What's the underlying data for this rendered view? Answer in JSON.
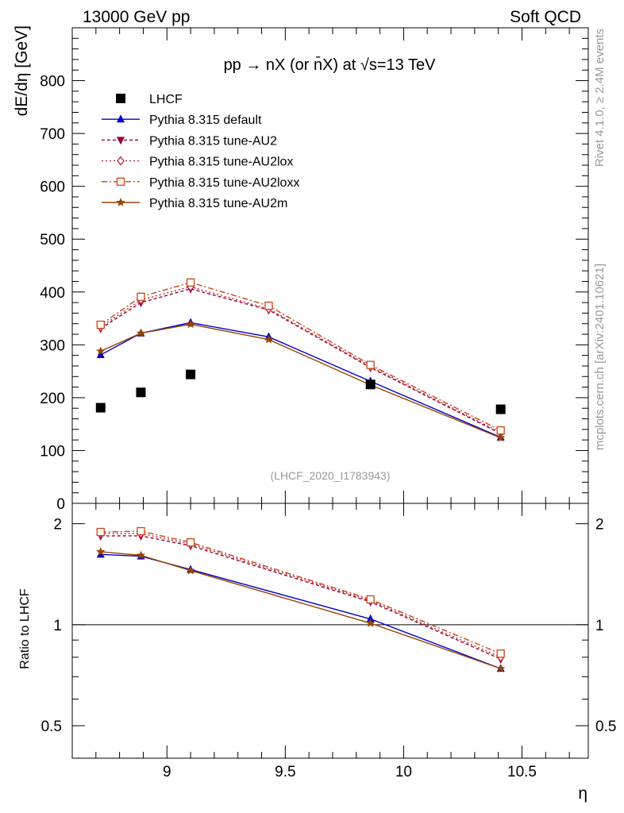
{
  "header": {
    "left": "13000 GeV pp",
    "right": "Soft QCD"
  },
  "side_labels": {
    "rivet": "Rivet 4.1.0, ≥ 2.4M events",
    "mcplots": "mcplots.cern.ch [arXiv:2401.10621]"
  },
  "chart_data": {
    "type": "line",
    "title": "pp → nX (or n̄X) at √s=13 TeV",
    "xlabel": "η",
    "ylabel": "dE/dη [GeV]",
    "ratio_ylabel": "Ratio to LHCF",
    "watermark": "(LHCF_2020_I1783943)",
    "xlim": [
      8.6,
      10.78
    ],
    "ylim": [
      0,
      900
    ],
    "ratio_ylim": [
      0.4,
      2.3
    ],
    "x_ticks": [
      "9",
      "9.5",
      "10",
      "10.5"
    ],
    "x_tick_values": [
      9,
      9.5,
      10,
      10.5
    ],
    "y_ticks": [
      "0",
      "100",
      "200",
      "300",
      "400",
      "500",
      "600",
      "700",
      "800"
    ],
    "y_tick_values": [
      0,
      100,
      200,
      300,
      400,
      500,
      600,
      700,
      800
    ],
    "ratio_ticks": [
      "0.5",
      "1",
      "2"
    ],
    "ratio_tick_values": [
      0.5,
      1,
      2
    ],
    "x": [
      8.72,
      8.89,
      9.1,
      9.43,
      9.86,
      10.41
    ],
    "data": {
      "name": "LHCF",
      "values": [
        181,
        210,
        244,
        null,
        225,
        178
      ]
    },
    "series": [
      {
        "name": "Pythia 8.315 default",
        "values": [
          281,
          322,
          342,
          315,
          231,
          125
        ],
        "ratio": [
          1.62,
          1.6,
          1.46,
          null,
          1.04,
          0.74
        ],
        "color": "#0000cc",
        "marker": "triangle-up",
        "dash": ""
      },
      {
        "name": "Pythia 8.315 tune-AU2",
        "values": [
          331,
          380,
          406,
          366,
          257,
          132
        ],
        "ratio": [
          1.84,
          1.84,
          1.72,
          null,
          1.17,
          0.79
        ],
        "color": "#990033",
        "marker": "triangle-down",
        "dash": "4,3"
      },
      {
        "name": "Pythia 8.315 tune-AU2lox",
        "values": [
          334,
          385,
          410,
          368,
          259,
          134
        ],
        "ratio": [
          1.87,
          1.87,
          1.74,
          null,
          1.18,
          0.8
        ],
        "color": "#bb2244",
        "marker": "diamond-open",
        "dash": "2,3"
      },
      {
        "name": "Pythia 8.315 tune-AU2loxx",
        "values": [
          338,
          391,
          418,
          374,
          262,
          138
        ],
        "ratio": [
          1.89,
          1.9,
          1.76,
          null,
          1.19,
          0.82
        ],
        "color": "#cc4411",
        "marker": "square-open",
        "dash": "7,3,2,3"
      },
      {
        "name": "Pythia 8.315 tune-AU2m",
        "values": [
          288,
          322,
          339,
          310,
          224,
          124
        ],
        "ratio": [
          1.65,
          1.61,
          1.45,
          null,
          1.01,
          0.74
        ],
        "color": "#994400",
        "marker": "star",
        "dash": ""
      }
    ],
    "legend_position": "top-left"
  }
}
